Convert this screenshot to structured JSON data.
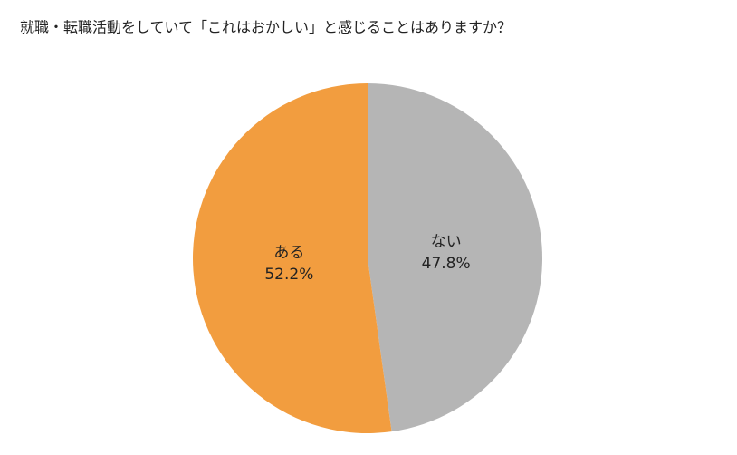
{
  "chart_data": {
    "type": "pie",
    "title": "就職・転職活動をしていて「これはおかしい」と感じることはありますか？",
    "categories": [
      "ない",
      "ある"
    ],
    "values": [
      47.8,
      52.2
    ],
    "value_labels": [
      "47.8%",
      "52.2%"
    ],
    "colors": [
      "#b5b5b5",
      "#f29d3f"
    ]
  }
}
